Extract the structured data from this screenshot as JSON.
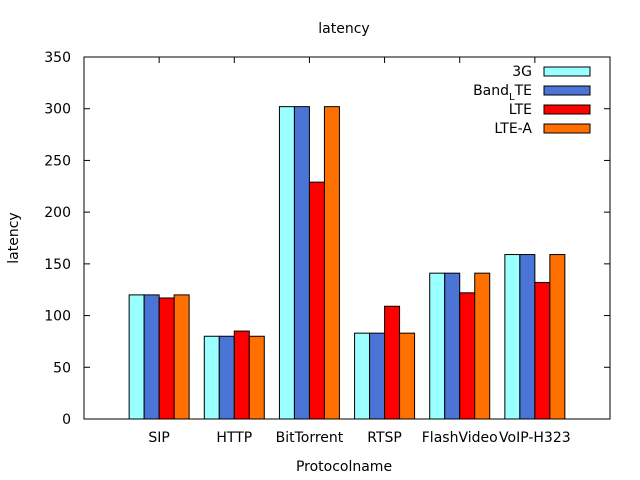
{
  "chart_data": {
    "type": "bar",
    "title": "latency",
    "xlabel": "Protocolname",
    "ylabel": "latency",
    "ylim": [
      0,
      350
    ],
    "yticks": [
      0,
      50,
      100,
      150,
      200,
      250,
      300,
      350
    ],
    "grid": false,
    "legend_position": "top-right",
    "categories": [
      "SIP",
      "HTTP",
      "BitTorrent",
      "RTSP",
      "FlashVideo",
      "VoIP-H323"
    ],
    "series": [
      {
        "name": "3G",
        "color": "#99ffff",
        "values": [
          120,
          80,
          302,
          83,
          141,
          159
        ]
      },
      {
        "name": "Band_LTE",
        "label_main": "Band",
        "label_sub": "L",
        "label_tail": "TE",
        "color": "#4a75d6",
        "values": [
          120,
          80,
          302,
          83,
          141,
          159
        ]
      },
      {
        "name": "LTE",
        "color": "#ff0000",
        "values": [
          117,
          85,
          229,
          109,
          122,
          132
        ]
      },
      {
        "name": "LTE-A",
        "color": "#ff7000",
        "values": [
          120,
          80,
          302,
          83,
          141,
          159
        ]
      }
    ]
  }
}
